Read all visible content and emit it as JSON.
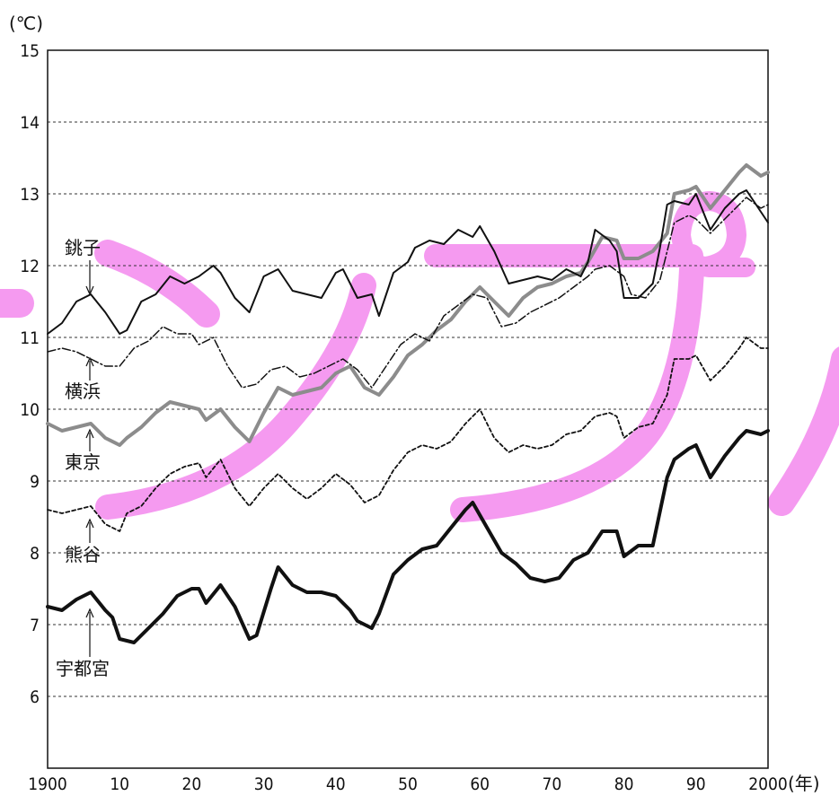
{
  "chart_data": {
    "type": "line",
    "y_unit_label": "(℃)",
    "x_unit_label": "(年)",
    "xlim": [
      1900,
      2000
    ],
    "ylim": [
      5,
      15
    ],
    "x_ticks": [
      1900,
      1910,
      1920,
      1930,
      1940,
      1950,
      1960,
      1970,
      1980,
      1990,
      2000
    ],
    "x_tick_labels": [
      "1900",
      "10",
      "20",
      "30",
      "40",
      "50",
      "60",
      "70",
      "80",
      "90",
      "2000"
    ],
    "y_ticks": [
      6,
      7,
      8,
      9,
      10,
      11,
      12,
      13,
      14,
      15
    ],
    "y_tick_labels": [
      "6",
      "7",
      "8",
      "9",
      "10",
      "11",
      "12",
      "13",
      "14",
      "15"
    ],
    "grid": "horizontal dashed",
    "series": [
      {
        "name": "銚子",
        "style": "thin-solid",
        "color": "#111111",
        "points": [
          [
            1900,
            11.05
          ],
          [
            1902,
            11.2
          ],
          [
            1904,
            11.5
          ],
          [
            1906,
            11.6
          ],
          [
            1908,
            11.35
          ],
          [
            1910,
            11.05
          ],
          [
            1911,
            11.1
          ],
          [
            1913,
            11.5
          ],
          [
            1915,
            11.6
          ],
          [
            1917,
            11.85
          ],
          [
            1919,
            11.75
          ],
          [
            1921,
            11.85
          ],
          [
            1923,
            12.0
          ],
          [
            1924,
            11.9
          ],
          [
            1926,
            11.55
          ],
          [
            1928,
            11.35
          ],
          [
            1930,
            11.85
          ],
          [
            1932,
            11.95
          ],
          [
            1934,
            11.65
          ],
          [
            1936,
            11.6
          ],
          [
            1938,
            11.55
          ],
          [
            1940,
            11.9
          ],
          [
            1941,
            11.95
          ],
          [
            1943,
            11.55
          ],
          [
            1945,
            11.6
          ],
          [
            1946,
            11.3
          ],
          [
            1948,
            11.9
          ],
          [
            1950,
            12.05
          ],
          [
            1951,
            12.25
          ],
          [
            1953,
            12.35
          ],
          [
            1955,
            12.3
          ],
          [
            1957,
            12.5
          ],
          [
            1959,
            12.4
          ],
          [
            1960,
            12.55
          ],
          [
            1962,
            12.2
          ],
          [
            1964,
            11.75
          ],
          [
            1966,
            11.8
          ],
          [
            1968,
            11.85
          ],
          [
            1970,
            11.8
          ],
          [
            1972,
            11.95
          ],
          [
            1974,
            11.85
          ],
          [
            1975,
            12.05
          ],
          [
            1976,
            12.5
          ],
          [
            1978,
            12.35
          ],
          [
            1979,
            12.2
          ],
          [
            1980,
            11.55
          ],
          [
            1982,
            11.55
          ],
          [
            1984,
            11.75
          ],
          [
            1985,
            12.25
          ],
          [
            1986,
            12.85
          ],
          [
            1987,
            12.9
          ],
          [
            1989,
            12.85
          ],
          [
            1990,
            13.0
          ],
          [
            1992,
            12.5
          ],
          [
            1994,
            12.8
          ],
          [
            1996,
            13.0
          ],
          [
            1997,
            13.05
          ],
          [
            1998,
            12.9
          ],
          [
            2000,
            12.6
          ]
        ]
      },
      {
        "name": "横浜",
        "style": "thin-dashdot",
        "color": "#111111",
        "points": [
          [
            1900,
            10.8
          ],
          [
            1902,
            10.85
          ],
          [
            1904,
            10.8
          ],
          [
            1906,
            10.7
          ],
          [
            1908,
            10.6
          ],
          [
            1910,
            10.6
          ],
          [
            1912,
            10.85
          ],
          [
            1914,
            10.95
          ],
          [
            1916,
            11.15
          ],
          [
            1918,
            11.05
          ],
          [
            1920,
            11.05
          ],
          [
            1921,
            10.9
          ],
          [
            1923,
            11.0
          ],
          [
            1925,
            10.6
          ],
          [
            1927,
            10.3
          ],
          [
            1929,
            10.35
          ],
          [
            1931,
            10.55
          ],
          [
            1933,
            10.6
          ],
          [
            1935,
            10.45
          ],
          [
            1937,
            10.5
          ],
          [
            1939,
            10.6
          ],
          [
            1941,
            10.7
          ],
          [
            1943,
            10.55
          ],
          [
            1945,
            10.3
          ],
          [
            1947,
            10.6
          ],
          [
            1949,
            10.9
          ],
          [
            1951,
            11.05
          ],
          [
            1953,
            10.95
          ],
          [
            1955,
            11.3
          ],
          [
            1957,
            11.45
          ],
          [
            1959,
            11.6
          ],
          [
            1961,
            11.55
          ],
          [
            1963,
            11.15
          ],
          [
            1965,
            11.2
          ],
          [
            1967,
            11.35
          ],
          [
            1969,
            11.45
          ],
          [
            1971,
            11.55
          ],
          [
            1973,
            11.7
          ],
          [
            1975,
            11.85
          ],
          [
            1976,
            11.95
          ],
          [
            1978,
            12.0
          ],
          [
            1980,
            11.85
          ],
          [
            1981,
            11.6
          ],
          [
            1983,
            11.55
          ],
          [
            1985,
            11.8
          ],
          [
            1987,
            12.6
          ],
          [
            1989,
            12.7
          ],
          [
            1990,
            12.65
          ],
          [
            1992,
            12.45
          ],
          [
            1994,
            12.65
          ],
          [
            1996,
            12.85
          ],
          [
            1997,
            12.95
          ],
          [
            1999,
            12.8
          ],
          [
            2000,
            12.85
          ]
        ]
      },
      {
        "name": "東京",
        "style": "thick-gray",
        "color": "#8c8c8c",
        "points": [
          [
            1900,
            9.8
          ],
          [
            1902,
            9.7
          ],
          [
            1904,
            9.75
          ],
          [
            1906,
            9.8
          ],
          [
            1908,
            9.6
          ],
          [
            1910,
            9.5
          ],
          [
            1911,
            9.6
          ],
          [
            1913,
            9.75
          ],
          [
            1915,
            9.95
          ],
          [
            1917,
            10.1
          ],
          [
            1919,
            10.05
          ],
          [
            1921,
            10.0
          ],
          [
            1922,
            9.85
          ],
          [
            1924,
            10.0
          ],
          [
            1926,
            9.75
          ],
          [
            1928,
            9.55
          ],
          [
            1930,
            9.95
          ],
          [
            1932,
            10.3
          ],
          [
            1934,
            10.2
          ],
          [
            1936,
            10.25
          ],
          [
            1938,
            10.3
          ],
          [
            1940,
            10.5
          ],
          [
            1942,
            10.6
          ],
          [
            1944,
            10.3
          ],
          [
            1946,
            10.2
          ],
          [
            1948,
            10.45
          ],
          [
            1950,
            10.75
          ],
          [
            1952,
            10.9
          ],
          [
            1954,
            11.1
          ],
          [
            1956,
            11.25
          ],
          [
            1958,
            11.5
          ],
          [
            1960,
            11.7
          ],
          [
            1962,
            11.5
          ],
          [
            1964,
            11.3
          ],
          [
            1966,
            11.55
          ],
          [
            1968,
            11.7
          ],
          [
            1970,
            11.75
          ],
          [
            1972,
            11.85
          ],
          [
            1974,
            11.9
          ],
          [
            1975,
            12.05
          ],
          [
            1977,
            12.4
          ],
          [
            1979,
            12.35
          ],
          [
            1980,
            12.1
          ],
          [
            1982,
            12.1
          ],
          [
            1984,
            12.2
          ],
          [
            1986,
            12.45
          ],
          [
            1987,
            13.0
          ],
          [
            1989,
            13.05
          ],
          [
            1990,
            13.1
          ],
          [
            1992,
            12.8
          ],
          [
            1994,
            13.05
          ],
          [
            1996,
            13.3
          ],
          [
            1997,
            13.4
          ],
          [
            1999,
            13.25
          ],
          [
            2000,
            13.3
          ]
        ]
      },
      {
        "name": "熊谷",
        "style": "thin-dashed",
        "color": "#111111",
        "points": [
          [
            1900,
            8.6
          ],
          [
            1902,
            8.55
          ],
          [
            1904,
            8.6
          ],
          [
            1906,
            8.65
          ],
          [
            1908,
            8.4
          ],
          [
            1910,
            8.3
          ],
          [
            1911,
            8.55
          ],
          [
            1913,
            8.65
          ],
          [
            1915,
            8.9
          ],
          [
            1917,
            9.1
          ],
          [
            1919,
            9.2
          ],
          [
            1921,
            9.25
          ],
          [
            1922,
            9.05
          ],
          [
            1924,
            9.3
          ],
          [
            1926,
            8.9
          ],
          [
            1928,
            8.65
          ],
          [
            1930,
            8.9
          ],
          [
            1932,
            9.1
          ],
          [
            1934,
            8.9
          ],
          [
            1936,
            8.75
          ],
          [
            1938,
            8.9
          ],
          [
            1940,
            9.1
          ],
          [
            1942,
            8.95
          ],
          [
            1944,
            8.7
          ],
          [
            1946,
            8.8
          ],
          [
            1948,
            9.15
          ],
          [
            1950,
            9.4
          ],
          [
            1952,
            9.5
          ],
          [
            1954,
            9.45
          ],
          [
            1956,
            9.55
          ],
          [
            1958,
            9.8
          ],
          [
            1960,
            10.0
          ],
          [
            1962,
            9.6
          ],
          [
            1964,
            9.4
          ],
          [
            1966,
            9.5
          ],
          [
            1968,
            9.45
          ],
          [
            1970,
            9.5
          ],
          [
            1972,
            9.65
          ],
          [
            1974,
            9.7
          ],
          [
            1976,
            9.9
          ],
          [
            1978,
            9.95
          ],
          [
            1979,
            9.9
          ],
          [
            1980,
            9.6
          ],
          [
            1982,
            9.75
          ],
          [
            1984,
            9.8
          ],
          [
            1986,
            10.2
          ],
          [
            1987,
            10.7
          ],
          [
            1989,
            10.7
          ],
          [
            1990,
            10.75
          ],
          [
            1992,
            10.4
          ],
          [
            1994,
            10.6
          ],
          [
            1996,
            10.85
          ],
          [
            1997,
            11.0
          ],
          [
            1999,
            10.85
          ],
          [
            2000,
            10.85
          ]
        ]
      },
      {
        "name": "宇都宮",
        "style": "thick-solid",
        "color": "#111111",
        "points": [
          [
            1900,
            7.25
          ],
          [
            1902,
            7.2
          ],
          [
            1904,
            7.35
          ],
          [
            1906,
            7.45
          ],
          [
            1908,
            7.2
          ],
          [
            1909,
            7.1
          ],
          [
            1910,
            6.8
          ],
          [
            1912,
            6.75
          ],
          [
            1914,
            6.95
          ],
          [
            1916,
            7.15
          ],
          [
            1918,
            7.4
          ],
          [
            1920,
            7.5
          ],
          [
            1921,
            7.5
          ],
          [
            1922,
            7.3
          ],
          [
            1924,
            7.55
          ],
          [
            1926,
            7.25
          ],
          [
            1928,
            6.8
          ],
          [
            1929,
            6.85
          ],
          [
            1931,
            7.5
          ],
          [
            1932,
            7.8
          ],
          [
            1934,
            7.55
          ],
          [
            1936,
            7.45
          ],
          [
            1938,
            7.45
          ],
          [
            1940,
            7.4
          ],
          [
            1942,
            7.2
          ],
          [
            1943,
            7.05
          ],
          [
            1945,
            6.95
          ],
          [
            1946,
            7.15
          ],
          [
            1948,
            7.7
          ],
          [
            1950,
            7.9
          ],
          [
            1952,
            8.05
          ],
          [
            1954,
            8.1
          ],
          [
            1956,
            8.35
          ],
          [
            1958,
            8.6
          ],
          [
            1959,
            8.7
          ],
          [
            1961,
            8.35
          ],
          [
            1963,
            8.0
          ],
          [
            1965,
            7.85
          ],
          [
            1967,
            7.65
          ],
          [
            1969,
            7.6
          ],
          [
            1971,
            7.65
          ],
          [
            1973,
            7.9
          ],
          [
            1975,
            8.0
          ],
          [
            1977,
            8.3
          ],
          [
            1979,
            8.3
          ],
          [
            1980,
            7.95
          ],
          [
            1982,
            8.1
          ],
          [
            1984,
            8.1
          ],
          [
            1986,
            9.05
          ],
          [
            1987,
            9.3
          ],
          [
            1989,
            9.45
          ],
          [
            1990,
            9.5
          ],
          [
            1992,
            9.05
          ],
          [
            1994,
            9.35
          ],
          [
            1996,
            9.6
          ],
          [
            1997,
            9.7
          ],
          [
            1999,
            9.65
          ],
          [
            2000,
            9.7
          ]
        ]
      }
    ],
    "annotations": [
      {
        "text": "銚子",
        "target": "銚子"
      },
      {
        "text": "横浜",
        "target": "横浜"
      },
      {
        "text": "東京",
        "target": "東京"
      },
      {
        "text": "熊谷",
        "target": "熊谷"
      },
      {
        "text": "宇都宮",
        "target": "宇都宮"
      }
    ],
    "highlight_color": "#f59af0"
  }
}
